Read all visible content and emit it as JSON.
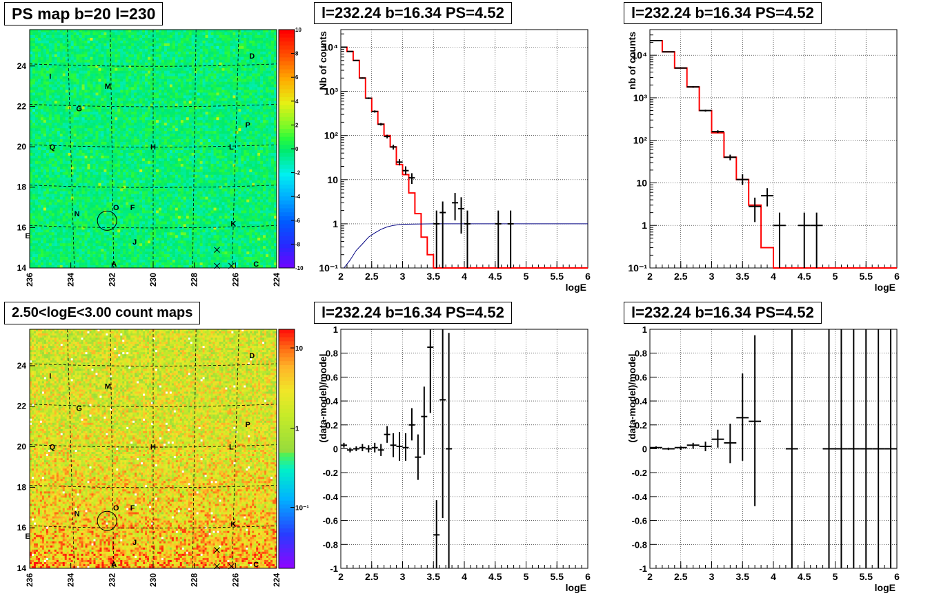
{
  "titles": {
    "ps_map": "PS map b=20 l=230",
    "count_map": "2.50<logE<3.00 count maps",
    "spectrum_1": "l=232.24 b=16.34 PS=4.52",
    "spectrum_2": "l=232.24 b=16.34 PS=4.52",
    "residual_1": "l=232.24 b=16.34 PS=4.52",
    "residual_2": "l=232.24 b=16.34 PS=4.52"
  },
  "colors": {
    "data": "#000000",
    "model": "#ff0000",
    "ratio_curve": "#000080",
    "grid": "#000000"
  },
  "chart_data": [
    {
      "id": "ps_map",
      "type": "heatmap",
      "title": "PS map b=20 l=230",
      "x_ticks": [
        "236",
        "234",
        "232",
        "230",
        "228",
        "226",
        "224"
      ],
      "y_ticks": [
        "14",
        "16",
        "18",
        "20",
        "22",
        "24"
      ],
      "xlim": [
        236,
        224
      ],
      "ylim": [
        14,
        25.8
      ],
      "colorbar": {
        "scale": "linear",
        "range": [
          -10,
          10
        ],
        "ticks": [
          "10",
          "8",
          "6",
          "4",
          "2",
          "0",
          "-2",
          "-4",
          "-6",
          "-8",
          "-10"
        ]
      },
      "labels": [
        {
          "text": "D",
          "l": 225.2,
          "b": 24.5
        },
        {
          "text": "I",
          "l": 235.0,
          "b": 23.5
        },
        {
          "text": "M",
          "l": 232.2,
          "b": 23.0
        },
        {
          "text": "G",
          "l": 233.6,
          "b": 21.9
        },
        {
          "text": "P",
          "l": 225.4,
          "b": 21.1
        },
        {
          "text": "Q",
          "l": 234.9,
          "b": 20.0
        },
        {
          "text": "H",
          "l": 230.0,
          "b": 20.0
        },
        {
          "text": "L",
          "l": 226.2,
          "b": 20.0
        },
        {
          "text": "O",
          "l": 231.8,
          "b": 17.0
        },
        {
          "text": "F",
          "l": 231.0,
          "b": 17.0
        },
        {
          "text": "N",
          "l": 233.7,
          "b": 16.7
        },
        {
          "text": "K",
          "l": 226.1,
          "b": 16.2
        },
        {
          "text": "E",
          "l": 236.1,
          "b": 15.6
        },
        {
          "text": "J",
          "l": 230.9,
          "b": 15.3
        },
        {
          "text": "A",
          "l": 231.9,
          "b": 14.2
        },
        {
          "text": "C",
          "l": 225.0,
          "b": 14.2
        }
      ],
      "circle": {
        "l": 232.24,
        "b": 16.34
      },
      "crosses": [
        {
          "l": 226.9,
          "b": 14.9
        },
        {
          "l": 226.9,
          "b": 14.0
        },
        {
          "l": 226.2,
          "b": 14.0
        }
      ]
    },
    {
      "id": "count_map",
      "type": "heatmap",
      "title": "2.50<logE<3.00 count maps",
      "x_ticks": [
        "236",
        "234",
        "232",
        "230",
        "228",
        "226",
        "224"
      ],
      "y_ticks": [
        "14",
        "16",
        "18",
        "20",
        "22",
        "24"
      ],
      "xlim": [
        236,
        224
      ],
      "ylim": [
        14,
        25.8
      ],
      "colorbar": {
        "scale": "log",
        "ticks": [
          "10",
          "1",
          "10⁻¹"
        ]
      },
      "labels": [
        {
          "text": "D",
          "l": 225.2,
          "b": 24.5
        },
        {
          "text": "I",
          "l": 235.0,
          "b": 23.5
        },
        {
          "text": "M",
          "l": 232.2,
          "b": 23.0
        },
        {
          "text": "G",
          "l": 233.6,
          "b": 21.9
        },
        {
          "text": "P",
          "l": 225.4,
          "b": 21.1
        },
        {
          "text": "Q",
          "l": 234.9,
          "b": 20.0
        },
        {
          "text": "H",
          "l": 230.0,
          "b": 20.0
        },
        {
          "text": "L",
          "l": 226.2,
          "b": 20.0
        },
        {
          "text": "O",
          "l": 231.8,
          "b": 17.0
        },
        {
          "text": "F",
          "l": 231.0,
          "b": 17.0
        },
        {
          "text": "N",
          "l": 233.7,
          "b": 16.7
        },
        {
          "text": "K",
          "l": 226.1,
          "b": 16.2
        },
        {
          "text": "E",
          "l": 236.1,
          "b": 15.6
        },
        {
          "text": "J",
          "l": 230.9,
          "b": 15.3
        },
        {
          "text": "A",
          "l": 231.9,
          "b": 14.2
        },
        {
          "text": "C",
          "l": 225.0,
          "b": 14.2
        }
      ],
      "circle": {
        "l": 232.24,
        "b": 16.34
      },
      "crosses": [
        {
          "l": 226.9,
          "b": 14.9
        },
        {
          "l": 226.9,
          "b": 14.0
        },
        {
          "l": 226.2,
          "b": 14.0
        }
      ]
    },
    {
      "id": "spectrum_1",
      "type": "line",
      "title": "l=232.24 b=16.34 PS=4.52",
      "xlabel": "logE",
      "ylabel": "Nb of counts",
      "yscale": "log",
      "xlim": [
        2,
        6
      ],
      "ylim": [
        0.1,
        25000
      ],
      "x_ticks": [
        "2",
        "2.5",
        "3",
        "3.5",
        "4",
        "4.5",
        "5",
        "5.5",
        "6"
      ],
      "y_ticks": [
        {
          "v": 0.1,
          "label": "10⁻¹"
        },
        {
          "v": 1,
          "label": "1"
        },
        {
          "v": 10,
          "label": "10"
        },
        {
          "v": 100,
          "label": "10²"
        },
        {
          "v": 1000,
          "label": "10³"
        },
        {
          "v": 10000,
          "label": "10⁴"
        }
      ],
      "bin_width": 0.1,
      "model": [
        10000,
        8000,
        5000,
        2000,
        700,
        350,
        180,
        100,
        55,
        22,
        13,
        5,
        1.7,
        0.5,
        0.2,
        0.1,
        0.1,
        0.1,
        0.1,
        0.1,
        0.1,
        0.1,
        0.1,
        0.1,
        0.1,
        0.1,
        0.1,
        0.1,
        0.1,
        0.1,
        0.1,
        0.1,
        0.1,
        0.1,
        0.1,
        0.1,
        0.1,
        0.1,
        0.1,
        0.1
      ],
      "ratio_curve": [
        {
          "x": 2.05,
          "y": 0.1
        },
        {
          "x": 2.15,
          "y": 0.15
        },
        {
          "x": 2.25,
          "y": 0.25
        },
        {
          "x": 2.35,
          "y": 0.35
        },
        {
          "x": 2.45,
          "y": 0.5
        },
        {
          "x": 2.55,
          "y": 0.62
        },
        {
          "x": 2.65,
          "y": 0.75
        },
        {
          "x": 2.75,
          "y": 0.85
        },
        {
          "x": 2.85,
          "y": 0.92
        },
        {
          "x": 2.95,
          "y": 0.96
        },
        {
          "x": 3.05,
          "y": 0.98
        },
        {
          "x": 3.2,
          "y": 0.99
        },
        {
          "x": 3.5,
          "y": 1
        },
        {
          "x": 6,
          "y": 1
        }
      ],
      "points": [
        {
          "x": 2.05,
          "y": 10000,
          "lo": 9800,
          "hi": 10200
        },
        {
          "x": 2.15,
          "y": 8000,
          "lo": 7850,
          "hi": 8150
        },
        {
          "x": 2.25,
          "y": 5000,
          "lo": 4880,
          "hi": 5120
        },
        {
          "x": 2.35,
          "y": 2000,
          "lo": 1930,
          "hi": 2070
        },
        {
          "x": 2.45,
          "y": 700,
          "lo": 670,
          "hi": 730
        },
        {
          "x": 2.55,
          "y": 350,
          "lo": 330,
          "hi": 370
        },
        {
          "x": 2.65,
          "y": 180,
          "lo": 168,
          "hi": 192
        },
        {
          "x": 2.75,
          "y": 95,
          "lo": 86,
          "hi": 104
        },
        {
          "x": 2.85,
          "y": 55,
          "lo": 48,
          "hi": 62
        },
        {
          "x": 2.95,
          "y": 25,
          "lo": 21,
          "hi": 29
        },
        {
          "x": 3.05,
          "y": 16,
          "lo": 13,
          "hi": 20
        },
        {
          "x": 3.15,
          "y": 11,
          "lo": 8,
          "hi": 14
        },
        {
          "x": 3.55,
          "y": 1,
          "lo": 0.1,
          "hi": 2
        },
        {
          "x": 3.65,
          "y": 1.8,
          "lo": 0.1,
          "hi": 3.2
        },
        {
          "x": 3.85,
          "y": 3,
          "lo": 1.2,
          "hi": 5
        },
        {
          "x": 3.95,
          "y": 2.2,
          "lo": 0.6,
          "hi": 4
        },
        {
          "x": 4.05,
          "y": 1,
          "lo": 0.1,
          "hi": 2
        },
        {
          "x": 4.55,
          "y": 1,
          "lo": 0.1,
          "hi": 2
        },
        {
          "x": 4.75,
          "y": 1,
          "lo": 0.1,
          "hi": 2
        }
      ]
    },
    {
      "id": "spectrum_2",
      "type": "line",
      "title": "l=232.24 b=16.34 PS=4.52",
      "xlabel": "logE",
      "ylabel": "nb of counts",
      "yscale": "log",
      "xlim": [
        2,
        6
      ],
      "ylim": [
        0.1,
        40000
      ],
      "x_ticks": [
        "2",
        "2.5",
        "3",
        "3.5",
        "4",
        "4.5",
        "5",
        "5.5",
        "6"
      ],
      "y_ticks": [
        {
          "v": 0.1,
          "label": "10⁻¹"
        },
        {
          "v": 1,
          "label": "1"
        },
        {
          "v": 10,
          "label": "10"
        },
        {
          "v": 100,
          "label": "10²"
        },
        {
          "v": 1000,
          "label": "10³"
        },
        {
          "v": 10000,
          "label": "10⁴"
        }
      ],
      "bin_width": 0.2,
      "model": [
        22000,
        12000,
        5000,
        1800,
        500,
        150,
        40,
        12,
        3,
        0.3,
        0.1,
        0.1,
        0.1,
        0.1,
        0.1,
        0.1,
        0.1,
        0.1,
        0.1,
        0.1
      ],
      "points": [
        {
          "x": 2.1,
          "y": 22000,
          "lo": 21500,
          "hi": 22500
        },
        {
          "x": 2.3,
          "y": 12000,
          "lo": 11700,
          "hi": 12300
        },
        {
          "x": 2.5,
          "y": 5000,
          "lo": 4880,
          "hi": 5120
        },
        {
          "x": 2.7,
          "y": 1800,
          "lo": 1720,
          "hi": 1880
        },
        {
          "x": 2.9,
          "y": 500,
          "lo": 475,
          "hi": 525
        },
        {
          "x": 3.1,
          "y": 160,
          "lo": 148,
          "hi": 172
        },
        {
          "x": 3.3,
          "y": 40,
          "lo": 34,
          "hi": 46
        },
        {
          "x": 3.5,
          "y": 12,
          "lo": 9,
          "hi": 16
        },
        {
          "x": 3.7,
          "y": 2.8,
          "lo": 1.2,
          "hi": 4.5
        },
        {
          "x": 3.9,
          "y": 5,
          "lo": 2.8,
          "hi": 7.5
        },
        {
          "x": 4.1,
          "y": 1,
          "lo": 0.1,
          "hi": 2
        },
        {
          "x": 4.5,
          "y": 1,
          "lo": 0.1,
          "hi": 2
        },
        {
          "x": 4.7,
          "y": 1,
          "lo": 0.1,
          "hi": 2
        }
      ]
    },
    {
      "id": "residual_1",
      "type": "scatter",
      "title": "l=232.24 b=16.34 PS=4.52",
      "xlabel": "logE",
      "ylabel": "(data-model)/model",
      "xlim": [
        2,
        6
      ],
      "ylim": [
        -1,
        1
      ],
      "x_ticks": [
        "2",
        "2.5",
        "3",
        "3.5",
        "4",
        "4.5",
        "5",
        "5.5",
        "6"
      ],
      "y_ticks": [
        "-1",
        "-0.8",
        "-0.6",
        "-0.4",
        "-0.2",
        "0",
        "0.2",
        "0.4",
        "0.6",
        "0.8",
        "1"
      ],
      "points": [
        {
          "x": 2.05,
          "y": 0.03,
          "lo": 0.01,
          "hi": 0.05
        },
        {
          "x": 2.15,
          "y": -0.01,
          "lo": -0.03,
          "hi": 0.01
        },
        {
          "x": 2.25,
          "y": 0.0,
          "lo": -0.02,
          "hi": 0.02
        },
        {
          "x": 2.35,
          "y": 0.01,
          "lo": -0.02,
          "hi": 0.04
        },
        {
          "x": 2.45,
          "y": 0.0,
          "lo": -0.03,
          "hi": 0.03
        },
        {
          "x": 2.55,
          "y": 0.01,
          "lo": -0.03,
          "hi": 0.05
        },
        {
          "x": 2.65,
          "y": -0.01,
          "lo": -0.06,
          "hi": 0.04
        },
        {
          "x": 2.75,
          "y": 0.12,
          "lo": 0.05,
          "hi": 0.19
        },
        {
          "x": 2.85,
          "y": 0.03,
          "lo": -0.07,
          "hi": 0.13
        },
        {
          "x": 2.95,
          "y": 0.02,
          "lo": -0.1,
          "hi": 0.14
        },
        {
          "x": 3.05,
          "y": 0.01,
          "lo": -0.1,
          "hi": 0.13
        },
        {
          "x": 3.15,
          "y": 0.2,
          "lo": 0.07,
          "hi": 0.34
        },
        {
          "x": 3.25,
          "y": -0.07,
          "lo": -0.26,
          "hi": 0.12
        },
        {
          "x": 3.35,
          "y": 0.27,
          "lo": -0.05,
          "hi": 0.52
        },
        {
          "x": 3.45,
          "y": 0.85,
          "lo": 0.3,
          "hi": 1.3
        },
        {
          "x": 3.55,
          "y": -0.72,
          "lo": -1.1,
          "hi": -0.43
        },
        {
          "x": 3.65,
          "y": 0.41,
          "lo": -0.58,
          "hi": 1.4
        },
        {
          "x": 3.75,
          "y": 0.0,
          "lo": -1.1,
          "hi": 0.97
        }
      ]
    },
    {
      "id": "residual_2",
      "type": "scatter",
      "title": "l=232.24 b=16.34 PS=4.52",
      "xlabel": "logE",
      "ylabel": "(data-model)/model",
      "xlim": [
        2,
        6
      ],
      "ylim": [
        -1,
        1
      ],
      "x_ticks": [
        "2",
        "2.5",
        "3",
        "3.5",
        "4",
        "4.5",
        "5",
        "5.5",
        "6"
      ],
      "y_ticks": [
        "-1",
        "-0.8",
        "-0.6",
        "-0.4",
        "-0.2",
        "0",
        "0.2",
        "0.4",
        "0.6",
        "0.8",
        "1"
      ],
      "points": [
        {
          "x": 2.1,
          "y": 0.01,
          "lo": 0.0,
          "hi": 0.02
        },
        {
          "x": 2.3,
          "y": 0.0,
          "lo": -0.01,
          "hi": 0.01
        },
        {
          "x": 2.5,
          "y": 0.01,
          "lo": -0.01,
          "hi": 0.02
        },
        {
          "x": 2.7,
          "y": 0.03,
          "lo": 0.0,
          "hi": 0.05
        },
        {
          "x": 2.9,
          "y": 0.02,
          "lo": -0.02,
          "hi": 0.06
        },
        {
          "x": 3.1,
          "y": 0.08,
          "lo": 0.01,
          "hi": 0.16
        },
        {
          "x": 3.3,
          "y": 0.05,
          "lo": -0.12,
          "hi": 0.21
        },
        {
          "x": 3.5,
          "y": 0.26,
          "lo": -0.1,
          "hi": 0.63
        },
        {
          "x": 3.7,
          "y": 0.23,
          "lo": -0.48,
          "hi": 0.95
        },
        {
          "x": 4.3,
          "y": 0.0,
          "lo": -1.1,
          "hi": 1.1
        },
        {
          "x": 4.9,
          "y": 0.0,
          "lo": -1.1,
          "hi": 1.1
        },
        {
          "x": 5.1,
          "y": 0.0,
          "lo": -1.1,
          "hi": 1.1
        },
        {
          "x": 5.3,
          "y": 0.0,
          "lo": -1.1,
          "hi": 1.1
        },
        {
          "x": 5.5,
          "y": 0.0,
          "lo": -1.1,
          "hi": 1.1
        },
        {
          "x": 5.7,
          "y": 0.0,
          "lo": -1.1,
          "hi": 1.1
        },
        {
          "x": 5.9,
          "y": 0.0,
          "lo": -1.1,
          "hi": 1.1
        }
      ]
    }
  ]
}
